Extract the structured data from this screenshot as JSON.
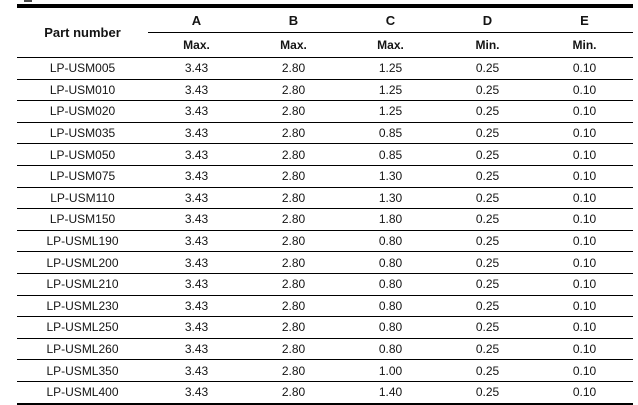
{
  "table": {
    "part_number_header": "Part number",
    "columns": [
      {
        "letter": "A",
        "limit": "Max."
      },
      {
        "letter": "B",
        "limit": "Max."
      },
      {
        "letter": "C",
        "limit": "Max."
      },
      {
        "letter": "D",
        "limit": "Min."
      },
      {
        "letter": "E",
        "limit": "Min."
      }
    ],
    "rows": [
      [
        "LP-USM005",
        "3.43",
        "2.80",
        "1.25",
        "0.25",
        "0.10"
      ],
      [
        "LP-USM010",
        "3.43",
        "2.80",
        "1.25",
        "0.25",
        "0.10"
      ],
      [
        "LP-USM020",
        "3.43",
        "2.80",
        "1.25",
        "0.25",
        "0.10"
      ],
      [
        "LP-USM035",
        "3.43",
        "2.80",
        "0.85",
        "0.25",
        "0.10"
      ],
      [
        "LP-USM050",
        "3.43",
        "2.80",
        "0.85",
        "0.25",
        "0.10"
      ],
      [
        "LP-USM075",
        "3.43",
        "2.80",
        "1.30",
        "0.25",
        "0.10"
      ],
      [
        "LP-USM110",
        "3.43",
        "2.80",
        "1.30",
        "0.25",
        "0.10"
      ],
      [
        "LP-USM150",
        "3.43",
        "2.80",
        "1.80",
        "0.25",
        "0.10"
      ],
      [
        "LP-USML190",
        "3.43",
        "2.80",
        "0.80",
        "0.25",
        "0.10"
      ],
      [
        "LP-USML200",
        "3.43",
        "2.80",
        "0.80",
        "0.25",
        "0.10"
      ],
      [
        "LP-USML210",
        "3.43",
        "2.80",
        "0.80",
        "0.25",
        "0.10"
      ],
      [
        "LP-USML230",
        "3.43",
        "2.80",
        "0.80",
        "0.25",
        "0.10"
      ],
      [
        "LP-USML250",
        "3.43",
        "2.80",
        "0.80",
        "0.25",
        "0.10"
      ],
      [
        "LP-USML260",
        "3.43",
        "2.80",
        "0.80",
        "0.25",
        "0.10"
      ],
      [
        "LP-USML350",
        "3.43",
        "2.80",
        "1.00",
        "0.25",
        "0.10"
      ],
      [
        "LP-USML400",
        "3.43",
        "2.80",
        "1.40",
        "0.25",
        "0.10"
      ]
    ],
    "colors": {
      "text": "#141414",
      "rule": "#000000",
      "background": "#ffffff"
    }
  }
}
